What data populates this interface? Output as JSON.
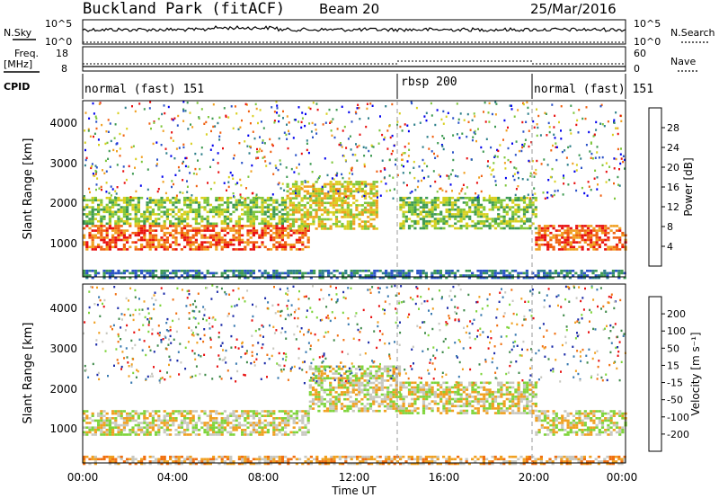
{
  "header": {
    "title": "Buckland Park (fitACF)",
    "beam": "Beam 20",
    "date": "25/Mar/2016"
  },
  "noise_panel": {
    "label": "N.Sky",
    "right_label": "N.Search",
    "ticks_left": [
      "10^5",
      "10^0"
    ],
    "ticks_right": [
      "10^5",
      "10^0"
    ]
  },
  "freq_panel": {
    "label_line1": "Freq.",
    "label_line2": "[MHz]",
    "right_label": "Nave",
    "ticks_left": [
      "18",
      "8"
    ],
    "ticks_right": [
      "60",
      "0"
    ]
  },
  "cpid_panel": {
    "label": "CPID",
    "segments": [
      {
        "label": "normal (fast) 151",
        "start_hour": 0,
        "end_hour": 14
      },
      {
        "label": "rbsp 200",
        "start_hour": 14,
        "end_hour": 20
      },
      {
        "label": "normal (fast) 151",
        "start_hour": 20,
        "end_hour": 24
      }
    ]
  },
  "x_axis": {
    "label": "Time UT",
    "ticks": [
      "00:00",
      "04:00",
      "08:00",
      "12:00",
      "16:00",
      "20:00",
      "00:00"
    ]
  },
  "y_axis": {
    "label": "Slant Range [km]",
    "ticks": [
      "1000",
      "2000",
      "3000",
      "4000"
    ]
  },
  "power_colorbar": {
    "label": "Power [dB]",
    "ticks": [
      "4",
      "8",
      "12",
      "16",
      "20",
      "24",
      "28"
    ],
    "colors": [
      "#0000ee",
      "#2a52c8",
      "#2e7f8a",
      "#3e9a52",
      "#7ec63a",
      "#d8d020",
      "#f0a020",
      "#f06010",
      "#e81010"
    ]
  },
  "velocity_colorbar": {
    "label": "Velocity [m s⁻¹]",
    "ticks": [
      "200",
      "100",
      "50",
      "15",
      "-15",
      "-50",
      "-100",
      "-200"
    ],
    "colors": [
      "#1a2aa8",
      "#3a7ab0",
      "#3f8a4a",
      "#7ed43a",
      "#c8c8c0",
      "#f0a020",
      "#f07010",
      "#e81010"
    ]
  },
  "chart_data": [
    {
      "type": "heatmap",
      "name_hint": "power",
      "xlim": [
        0,
        24
      ],
      "ylim": [
        200,
        4600
      ],
      "regions": [
        {
          "t0": 0,
          "t1": 10,
          "r0": 900,
          "r1": 1500,
          "level": 7
        },
        {
          "t0": 0,
          "t1": 9,
          "r0": 1500,
          "r1": 2200,
          "level": 4
        },
        {
          "t0": 9,
          "t1": 13,
          "r0": 1400,
          "r1": 2600,
          "level": 5
        },
        {
          "t0": 14,
          "t1": 20,
          "r0": 1400,
          "r1": 2200,
          "level": 4
        },
        {
          "t0": 20,
          "t1": 24,
          "r0": 900,
          "r1": 1500,
          "level": 7
        },
        {
          "t0": 0,
          "t1": 24,
          "r0": 200,
          "r1": 380,
          "level": 2
        }
      ]
    },
    {
      "type": "heatmap",
      "name_hint": "velocity",
      "xlim": [
        0,
        24
      ],
      "ylim": [
        200,
        4600
      ],
      "regions": [
        {
          "t0": 0,
          "t1": 10,
          "r0": 900,
          "r1": 1500,
          "level": 4
        },
        {
          "t0": 10,
          "t1": 14,
          "r0": 1500,
          "r1": 2600,
          "level": 4
        },
        {
          "t0": 14,
          "t1": 20,
          "r0": 1400,
          "r1": 2200,
          "level": 4
        },
        {
          "t0": 20,
          "t1": 24,
          "r0": 900,
          "r1": 1500,
          "level": 4
        },
        {
          "t0": 0,
          "t1": 24,
          "r0": 200,
          "r1": 380,
          "level": 5
        }
      ]
    }
  ]
}
